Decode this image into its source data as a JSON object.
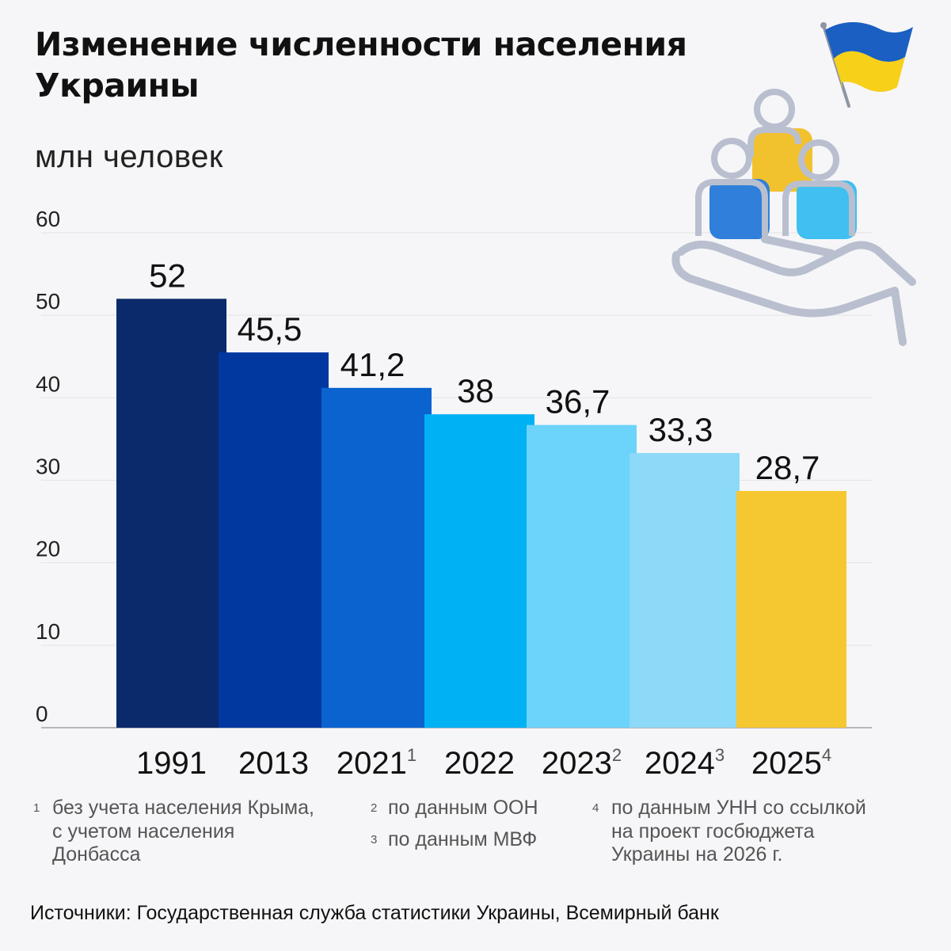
{
  "title": "Изменение численности населения Украины",
  "unit_label": "млн человек",
  "colors": {
    "background": "#f6f6f8",
    "bar_1991": "#0b2a6b",
    "bar_2013": "#0038a0",
    "bar_2021": "#0a63cf",
    "bar_2022": "#00b2f3",
    "bar_2023": "#6cd3fb",
    "bar_2024": "#8dd9f8",
    "bar_2025": "#f5c731",
    "flag_blue": "#1a5fc1",
    "flag_yellow": "#f6d019"
  },
  "chart_data": {
    "type": "bar",
    "categories": [
      "1991",
      "2013",
      "2021",
      "2022",
      "2023",
      "2024",
      "2025"
    ],
    "category_notes": [
      "",
      "",
      "1",
      "",
      "2",
      "3",
      "4"
    ],
    "values": [
      52,
      45.5,
      41.2,
      38,
      36.7,
      33.3,
      28.7
    ],
    "value_labels": [
      "52",
      "45,5",
      "41,2",
      "38",
      "36,7",
      "33,3",
      "28,7"
    ],
    "ylim": [
      0,
      60
    ],
    "yticks": [
      0,
      10,
      20,
      30,
      40,
      50,
      60
    ],
    "grid": true,
    "ylabel": "млн человек"
  },
  "footnotes": [
    {
      "num": "1",
      "text": "без учета населения Крыма,\nс учетом населения\nДонбасса"
    },
    {
      "num": "2",
      "text": "по данным ООН"
    },
    {
      "num": "3",
      "text": "по данным МВФ"
    },
    {
      "num": "4",
      "text": "по данным УНН со ссылкой\nна проект госбюджета\nУкраины на 2026 г."
    }
  ],
  "source": "Источники: Государственная служба статистики Украины, Всемирный банк",
  "illustration": {
    "icons": [
      "ukraine-flag-icon",
      "people-group-icon",
      "hand-icon"
    ]
  }
}
